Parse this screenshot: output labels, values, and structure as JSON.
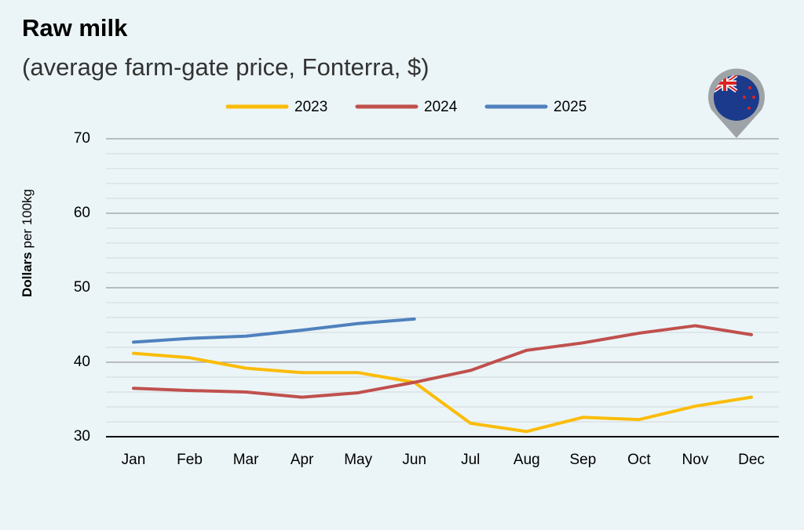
{
  "chart_data": {
    "type": "line",
    "title": "Raw milk",
    "subtitle": "(average farm-gate price, Fonterra, $)",
    "ylabel": [
      "Dollars",
      "per 100kg"
    ],
    "categories": [
      "Jan",
      "Feb",
      "Mar",
      "Apr",
      "May",
      "Jun",
      "Jul",
      "Aug",
      "Sep",
      "Oct",
      "Nov",
      "Dec"
    ],
    "series": [
      {
        "name": "2023",
        "color": "#fbbc0a",
        "values": [
          41.2,
          40.6,
          39.2,
          38.6,
          38.6,
          37.3,
          31.8,
          30.7,
          32.6,
          32.3,
          34.1,
          35.3
        ]
      },
      {
        "name": "2024",
        "color": "#c0504d",
        "values": [
          36.5,
          36.2,
          36.0,
          35.3,
          35.9,
          37.3,
          38.9,
          41.6,
          42.6,
          43.9,
          44.9,
          43.7
        ]
      },
      {
        "name": "2025",
        "color": "#4f81bd",
        "values": [
          42.7,
          43.2,
          43.5,
          44.3,
          45.2,
          45.8,
          null,
          null,
          null,
          null,
          null,
          null
        ]
      }
    ],
    "ylim": [
      30,
      70
    ],
    "yticks": [
      30,
      40,
      50,
      60,
      70
    ],
    "minor_yticks": [
      32,
      34,
      36,
      38,
      42,
      44,
      46,
      48,
      52,
      54,
      56,
      58,
      62,
      64,
      66,
      68
    ],
    "grid": true,
    "legend": "top"
  }
}
